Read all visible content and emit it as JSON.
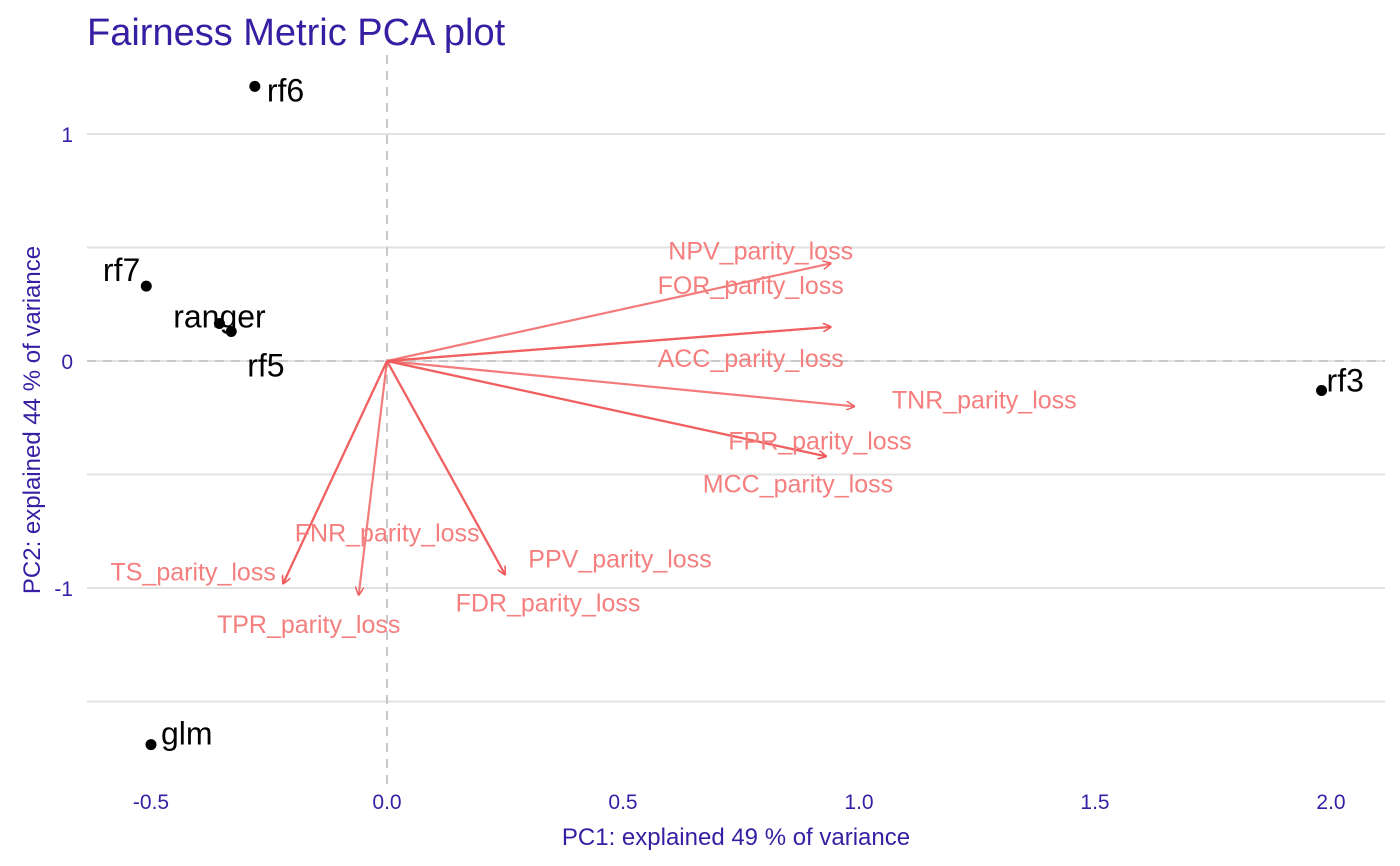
{
  "chart_data": {
    "type": "scatter",
    "subtype": "pca-biplot",
    "title": "Fairness Metric PCA plot",
    "xlabel": "PC1: explained 49 % of variance",
    "ylabel": "PC2: explained 44 % of variance",
    "xlim": [
      -0.63,
      2.08
    ],
    "ylim": [
      -1.85,
      1.38
    ],
    "x_ticks": [
      -0.5,
      0.0,
      0.5,
      1.0,
      1.5,
      2.0
    ],
    "x_tick_labels": [
      "-0.5",
      "0.0",
      "0.5",
      "1.0",
      "1.5",
      "2.0"
    ],
    "y_ticks": [
      -1,
      0,
      1
    ],
    "y_tick_labels": [
      "-1",
      "0",
      "1"
    ],
    "y_minor_gridlines": [
      -1.5,
      -0.5,
      0.5
    ],
    "grid": true,
    "reference_lines": {
      "x": 0,
      "y": 0,
      "style": "dashed"
    },
    "points": [
      {
        "label": "rf6",
        "x": -0.28,
        "y": 1.21
      },
      {
        "label": "rf7",
        "x": -0.51,
        "y": 0.33
      },
      {
        "label": "ranger",
        "x": -0.355,
        "y": 0.165
      },
      {
        "label": "rf5",
        "x": -0.33,
        "y": 0.13
      },
      {
        "label": "rf3",
        "x": 1.98,
        "y": -0.13
      },
      {
        "label": "glm",
        "x": -0.5,
        "y": -1.69
      }
    ],
    "loadings": [
      {
        "label": "NPV_parity_loss",
        "x": 0.94,
        "y": 0.43
      },
      {
        "label": "FOR_parity_loss",
        "x": 0.94,
        "y": 0.15
      },
      {
        "label": "ACC_parity_loss",
        "x": 0.94,
        "y": 0.15
      },
      {
        "label": "TNR_parity_loss",
        "x": 0.99,
        "y": -0.2
      },
      {
        "label": "FPR_parity_loss",
        "x": 0.93,
        "y": -0.42
      },
      {
        "label": "MCC_parity_loss",
        "x": 0.93,
        "y": -0.42
      },
      {
        "label": "FNR_parity_loss",
        "x": -0.22,
        "y": -0.98
      },
      {
        "label": "TS_parity_loss",
        "x": -0.22,
        "y": -0.98
      },
      {
        "label": "TPR_parity_loss",
        "x": -0.06,
        "y": -1.03
      },
      {
        "label": "PPV_parity_loss",
        "x": 0.25,
        "y": -0.94
      },
      {
        "label": "FDR_parity_loss",
        "x": 0.25,
        "y": -0.94
      }
    ],
    "colors": {
      "title": "#371ea3",
      "axis_text": "#371ea3",
      "points": "#000000",
      "arrows": "#f05a5a",
      "arrow_labels": "#f57e7e",
      "grid": "#e2e2e2",
      "reference_line": "#c8c8c8"
    }
  }
}
